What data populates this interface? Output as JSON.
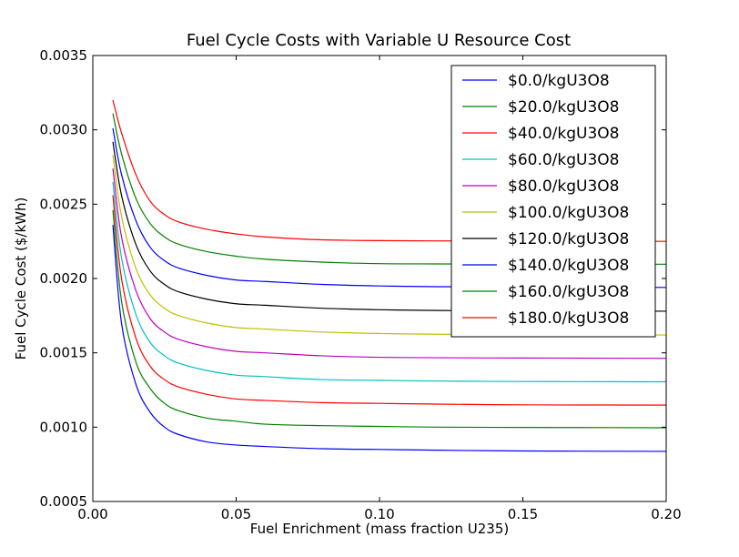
{
  "chart_data": {
    "type": "line",
    "title": "Fuel Cycle Costs with Variable U Resource Cost",
    "xlabel": "Fuel Enrichment (mass fraction U235)",
    "ylabel": "Fuel Cycle Cost ($/kWh)",
    "xlim": [
      0.0,
      0.2
    ],
    "ylim": [
      0.0005,
      0.0035
    ],
    "xticks": [
      0.0,
      0.05,
      0.1,
      0.15,
      0.2
    ],
    "xtick_labels": [
      "0.00",
      "0.05",
      "0.10",
      "0.15",
      "0.20"
    ],
    "yticks": [
      0.0005,
      0.001,
      0.0015,
      0.002,
      0.0025,
      0.003,
      0.0035
    ],
    "ytick_labels": [
      "0.0005",
      "0.0010",
      "0.0015",
      "0.0020",
      "0.0025",
      "0.0030",
      "0.0035"
    ],
    "grid": false,
    "legend_position": "top-right",
    "x": [
      0.007,
      0.01,
      0.015,
      0.02,
      0.025,
      0.03,
      0.04,
      0.05,
      0.06,
      0.08,
      0.1,
      0.12,
      0.15,
      0.18,
      0.2
    ],
    "series": [
      {
        "name": "$0.0/kgU3O8",
        "color": "#0000ff",
        "values": [
          0.00236,
          0.0017,
          0.00129,
          0.0011,
          0.001,
          0.00095,
          0.0009,
          0.00088,
          0.00087,
          0.000855,
          0.00085,
          0.000845,
          0.00084,
          0.000838,
          0.000837
        ]
      },
      {
        "name": "$20.0/kgU3O8",
        "color": "#008000",
        "values": [
          0.00246,
          0.00185,
          0.00144,
          0.00126,
          0.00116,
          0.00111,
          0.00106,
          0.00104,
          0.00102,
          0.00101,
          0.001005,
          0.001,
          0.000998,
          0.000997,
          0.000996
        ]
      },
      {
        "name": "$40.0/kgU3O8",
        "color": "#ff0000",
        "values": [
          0.00256,
          0.002,
          0.0016,
          0.00141,
          0.00132,
          0.00127,
          0.00122,
          0.00119,
          0.00118,
          0.001165,
          0.00116,
          0.001155,
          0.00115,
          0.001149,
          0.001148
        ]
      },
      {
        "name": "$60.0/kgU3O8",
        "color": "#00bfbf",
        "values": [
          0.00265,
          0.00214,
          0.00176,
          0.00157,
          0.00148,
          0.00143,
          0.00138,
          0.00135,
          0.00134,
          0.00132,
          0.001315,
          0.00131,
          0.001307,
          0.001306,
          0.001305
        ]
      },
      {
        "name": "$80.0/kgU3O8",
        "color": "#bf00bf",
        "values": [
          0.00274,
          0.00228,
          0.00192,
          0.00173,
          0.00164,
          0.00159,
          0.00154,
          0.00151,
          0.0015,
          0.00148,
          0.00147,
          0.001467,
          0.001465,
          0.001464,
          0.001463
        ]
      },
      {
        "name": "$100.0/kgU3O8",
        "color": "#bfbf00",
        "values": [
          0.00283,
          0.00242,
          0.00207,
          0.00189,
          0.0018,
          0.00175,
          0.0017,
          0.00167,
          0.00166,
          0.00164,
          0.00163,
          0.001625,
          0.001622,
          0.001621,
          0.00162
        ]
      },
      {
        "name": "$120.0/kgU3O8",
        "color": "#000000",
        "values": [
          0.00292,
          0.00256,
          0.00223,
          0.00205,
          0.00196,
          0.00191,
          0.00186,
          0.00183,
          0.00182,
          0.0018,
          0.00179,
          0.001785,
          0.001782,
          0.001781,
          0.00178
        ]
      },
      {
        "name": "$140.0/kgU3O8",
        "color": "#0000ff",
        "values": [
          0.00301,
          0.0027,
          0.00239,
          0.00221,
          0.00212,
          0.00207,
          0.00202,
          0.00199,
          0.00198,
          0.00196,
          0.00195,
          0.001945,
          0.001942,
          0.001941,
          0.00194
        ]
      },
      {
        "name": "$160.0/kgU3O8",
        "color": "#008000",
        "values": [
          0.00311,
          0.00284,
          0.00254,
          0.00237,
          0.00228,
          0.00223,
          0.00218,
          0.00215,
          0.00213,
          0.00211,
          0.0021,
          0.002098,
          0.002097,
          0.002096,
          0.002096
        ]
      },
      {
        "name": "$180.0/kgU3O8",
        "color": "#ff0000",
        "values": [
          0.0032,
          0.00298,
          0.0027,
          0.00252,
          0.00243,
          0.00238,
          0.00233,
          0.0023,
          0.00228,
          0.00226,
          0.002255,
          0.002253,
          0.002252,
          0.002251,
          0.00225
        ]
      }
    ]
  }
}
